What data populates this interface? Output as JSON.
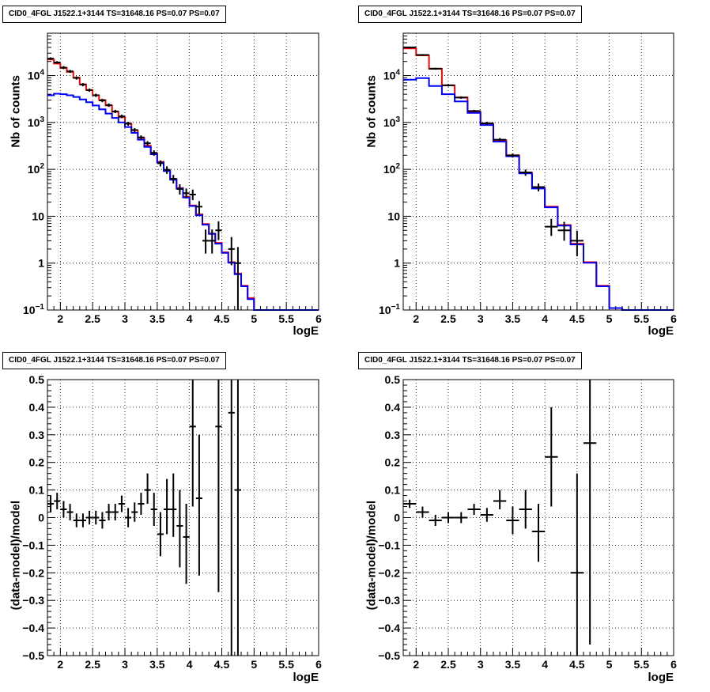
{
  "panel_title": "CID0_4FGL J1522.1+3144 TS=31648.16 PS=0.07 PS=0.07",
  "colors": {
    "total_model": "#ff0000",
    "component_model": "#0000ff",
    "data": "#000000"
  },
  "chart_data": [
    {
      "id": "top-left",
      "type": "line",
      "title": "CID0_4FGL J1522.1+3144 TS=31648.16 PS=0.07 PS=0.07",
      "xlabel": "logE",
      "ylabel": "Nb of counts",
      "xlim": [
        1.8,
        6
      ],
      "ylim": [
        0.1,
        80000
      ],
      "yscale": "log",
      "grid": true,
      "x_ticks": [
        2,
        2.5,
        3,
        3.5,
        4,
        4.5,
        5,
        5.5,
        6
      ],
      "x_tick_labels": [
        "2",
        "2.5",
        "3",
        "3.5",
        "4",
        "4.5",
        "5",
        "5.5",
        "6"
      ],
      "y_ticks": [
        0.1,
        1,
        10,
        100,
        1000,
        10000
      ],
      "y_tick_labels": [
        {
          "base": "10",
          "exp": "−1"
        },
        {
          "base": "1",
          "exp": ""
        },
        {
          "base": "10",
          "exp": ""
        },
        {
          "base": "10",
          "exp": "2"
        },
        {
          "base": "10",
          "exp": "3"
        },
        {
          "base": "10",
          "exp": "4"
        }
      ],
      "bin_edges": [
        1.8,
        1.9,
        2.0,
        2.1,
        2.2,
        2.3,
        2.4,
        2.5,
        2.6,
        2.7,
        2.8,
        2.9,
        3.0,
        3.1,
        3.2,
        3.3,
        3.4,
        3.5,
        3.6,
        3.7,
        3.8,
        3.9,
        4.0,
        4.1,
        4.2,
        4.3,
        4.4,
        4.5,
        4.6,
        4.7,
        4.8,
        4.9,
        5.0,
        5.1,
        5.2,
        5.3,
        5.4,
        5.5,
        5.6,
        5.7,
        5.8,
        5.9,
        6.0
      ],
      "series": [
        {
          "name": "",
          "color": "#ff0000",
          "values": [
            22000,
            18000,
            14500,
            12000,
            9000,
            6500,
            4900,
            3800,
            3000,
            2300,
            1700,
            1300,
            950,
            680,
            470,
            320,
            220,
            145,
            95,
            62,
            40,
            26,
            17,
            11,
            6.8,
            4.3,
            2.7,
            1.7,
            1.05,
            0.6,
            0.33,
            0.18,
            0.1,
            0.1,
            0.1,
            0.1,
            0.1,
            0.1,
            0.1,
            0.1,
            0.1,
            0.1
          ]
        },
        {
          "name": "",
          "color": "#0000ff",
          "values": [
            3800,
            4100,
            4000,
            3800,
            3500,
            3100,
            2700,
            2300,
            1900,
            1550,
            1250,
            1000,
            800,
            600,
            430,
            300,
            210,
            140,
            92,
            60,
            39,
            25,
            16.5,
            10.5,
            6.6,
            4.2,
            2.6,
            1.65,
            1.02,
            0.58,
            0.32,
            0.17,
            0.1,
            0.1,
            0.1,
            0.1,
            0.1,
            0.1,
            0.1,
            0.1,
            0.1,
            0.1
          ]
        }
      ],
      "data_points": [
        {
          "x": 1.85,
          "y": 23000,
          "ylo": 21500,
          "yhi": 24500,
          "xerr": 0.05
        },
        {
          "x": 1.95,
          "y": 19000,
          "ylo": 17700,
          "yhi": 20300,
          "xerr": 0.05
        },
        {
          "x": 2.05,
          "y": 14800,
          "ylo": 13700,
          "yhi": 15900,
          "xerr": 0.05
        },
        {
          "x": 2.15,
          "y": 12300,
          "ylo": 11400,
          "yhi": 13200,
          "xerr": 0.05
        },
        {
          "x": 2.25,
          "y": 8900,
          "ylo": 8200,
          "yhi": 9600,
          "xerr": 0.05
        },
        {
          "x": 2.35,
          "y": 6400,
          "ylo": 5900,
          "yhi": 6900,
          "xerr": 0.05
        },
        {
          "x": 2.45,
          "y": 4900,
          "ylo": 4500,
          "yhi": 5300,
          "xerr": 0.05
        },
        {
          "x": 2.55,
          "y": 3800,
          "ylo": 3500,
          "yhi": 4100,
          "xerr": 0.05
        },
        {
          "x": 2.65,
          "y": 2950,
          "ylo": 2700,
          "yhi": 3200,
          "xerr": 0.05
        },
        {
          "x": 2.75,
          "y": 2350,
          "ylo": 2150,
          "yhi": 2550,
          "xerr": 0.05
        },
        {
          "x": 2.85,
          "y": 1720,
          "ylo": 1580,
          "yhi": 1860,
          "xerr": 0.05
        },
        {
          "x": 2.95,
          "y": 1350,
          "ylo": 1230,
          "yhi": 1470,
          "xerr": 0.05
        },
        {
          "x": 3.05,
          "y": 940,
          "ylo": 850,
          "yhi": 1030,
          "xerr": 0.05
        },
        {
          "x": 3.15,
          "y": 690,
          "ylo": 620,
          "yhi": 760,
          "xerr": 0.05
        },
        {
          "x": 3.25,
          "y": 480,
          "ylo": 430,
          "yhi": 530,
          "xerr": 0.05
        },
        {
          "x": 3.35,
          "y": 360,
          "ylo": 320,
          "yhi": 400,
          "xerr": 0.05
        },
        {
          "x": 3.45,
          "y": 225,
          "ylo": 195,
          "yhi": 255,
          "xerr": 0.05
        },
        {
          "x": 3.55,
          "y": 135,
          "ylo": 115,
          "yhi": 155,
          "xerr": 0.05
        },
        {
          "x": 3.65,
          "y": 98,
          "ylo": 80,
          "yhi": 116,
          "xerr": 0.05
        },
        {
          "x": 3.75,
          "y": 63,
          "ylo": 50,
          "yhi": 76,
          "xerr": 0.05
        },
        {
          "x": 3.85,
          "y": 38,
          "ylo": 29,
          "yhi": 48,
          "xerr": 0.05
        },
        {
          "x": 3.95,
          "y": 31,
          "ylo": 24,
          "yhi": 39,
          "xerr": 0.05
        },
        {
          "x": 4.05,
          "y": 29,
          "ylo": 22,
          "yhi": 37,
          "xerr": 0.05
        },
        {
          "x": 4.15,
          "y": 16,
          "ylo": 11,
          "yhi": 21,
          "xerr": 0.05
        },
        {
          "x": 4.25,
          "y": 3,
          "ylo": 1.6,
          "yhi": 5.2,
          "xerr": 0.05
        },
        {
          "x": 4.35,
          "y": 3,
          "ylo": 1.6,
          "yhi": 5.2,
          "xerr": 0.05
        },
        {
          "x": 4.45,
          "y": 5,
          "ylo": 3.1,
          "yhi": 7.8,
          "xerr": 0.05
        },
        {
          "x": 4.65,
          "y": 2,
          "ylo": 0.9,
          "yhi": 3.6,
          "xerr": 0.05
        },
        {
          "x": 4.75,
          "y": 1,
          "ylo": 0.1,
          "yhi": 2.2,
          "xerr": 0.05
        }
      ]
    },
    {
      "id": "top-right",
      "type": "line",
      "title": "CID0_4FGL J1522.1+3144 TS=31648.16 PS=0.07 PS=0.07",
      "xlabel": "logE",
      "ylabel": "Nb of counts",
      "xlim": [
        1.8,
        6
      ],
      "ylim": [
        0.1,
        80000
      ],
      "yscale": "log",
      "grid": true,
      "x_ticks": [
        2,
        2.5,
        3,
        3.5,
        4,
        4.5,
        5,
        5.5,
        6
      ],
      "x_tick_labels": [
        "2",
        "2.5",
        "3",
        "3.5",
        "4",
        "4.5",
        "5",
        "5.5",
        "6"
      ],
      "y_ticks": [
        0.1,
        1,
        10,
        100,
        1000,
        10000
      ],
      "y_tick_labels": [
        {
          "base": "10",
          "exp": "−1"
        },
        {
          "base": "1",
          "exp": ""
        },
        {
          "base": "10",
          "exp": ""
        },
        {
          "base": "10",
          "exp": "2"
        },
        {
          "base": "10",
          "exp": "3"
        },
        {
          "base": "10",
          "exp": "4"
        }
      ],
      "bin_edges": [
        1.8,
        2.0,
        2.2,
        2.4,
        2.6,
        2.8,
        3.0,
        3.2,
        3.4,
        3.6,
        3.8,
        4.0,
        4.2,
        4.4,
        4.6,
        4.8,
        5.0,
        5.2,
        5.4,
        5.6,
        5.8,
        6.0
      ],
      "series": [
        {
          "name": "",
          "color": "#ff0000",
          "values": [
            38000,
            27000,
            14000,
            6200,
            3400,
            1700,
            950,
            420,
            200,
            85,
            40,
            16,
            6.5,
            2.6,
            1.05,
            0.33,
            0.11,
            0.1,
            0.1,
            0.1,
            0.1
          ]
        },
        {
          "name": "",
          "color": "#0000ff",
          "values": [
            8200,
            8800,
            6000,
            4000,
            2800,
            1600,
            880,
            390,
            190,
            82,
            39,
            15.5,
            6.3,
            2.5,
            1.02,
            0.32,
            0.11,
            0.1,
            0.1,
            0.1,
            0.1
          ]
        }
      ],
      "data_points": [
        {
          "x": 1.9,
          "y": 40000,
          "ylo": 38500,
          "yhi": 41500,
          "xerr": 0.1
        },
        {
          "x": 2.1,
          "y": 27500,
          "ylo": 26300,
          "yhi": 28700,
          "xerr": 0.1
        },
        {
          "x": 2.3,
          "y": 14000,
          "ylo": 13300,
          "yhi": 14700,
          "xerr": 0.1
        },
        {
          "x": 2.5,
          "y": 6200,
          "ylo": 5850,
          "yhi": 6550,
          "xerr": 0.1
        },
        {
          "x": 2.7,
          "y": 3400,
          "ylo": 3200,
          "yhi": 3600,
          "xerr": 0.1
        },
        {
          "x": 2.9,
          "y": 1750,
          "ylo": 1650,
          "yhi": 1850,
          "xerr": 0.1
        },
        {
          "x": 3.1,
          "y": 960,
          "ylo": 890,
          "yhi": 1030,
          "xerr": 0.1
        },
        {
          "x": 3.3,
          "y": 430,
          "ylo": 395,
          "yhi": 465,
          "xerr": 0.1
        },
        {
          "x": 3.5,
          "y": 198,
          "ylo": 178,
          "yhi": 218,
          "xerr": 0.1
        },
        {
          "x": 3.7,
          "y": 86,
          "ylo": 73,
          "yhi": 99,
          "xerr": 0.1
        },
        {
          "x": 3.9,
          "y": 42,
          "ylo": 34,
          "yhi": 50,
          "xerr": 0.1
        },
        {
          "x": 4.1,
          "y": 6,
          "ylo": 3.8,
          "yhi": 8.8,
          "xerr": 0.1
        },
        {
          "x": 4.3,
          "y": 5,
          "ylo": 3.0,
          "yhi": 7.6,
          "xerr": 0.1
        },
        {
          "x": 4.5,
          "y": 3,
          "ylo": 1.4,
          "yhi": 4.9,
          "xerr": 0.1
        }
      ]
    },
    {
      "id": "bottom-left",
      "type": "scatter",
      "title": "CID0_4FGL J1522.1+3144 TS=31648.16 PS=0.07 PS=0.07",
      "xlabel": "logE",
      "ylabel": "(data-model)/model",
      "xlim": [
        1.8,
        6
      ],
      "ylim": [
        -0.5,
        0.5
      ],
      "yscale": "linear",
      "grid": true,
      "x_ticks": [
        2,
        2.5,
        3,
        3.5,
        4,
        4.5,
        5,
        5.5,
        6
      ],
      "x_tick_labels": [
        "2",
        "2.5",
        "3",
        "3.5",
        "4",
        "4.5",
        "5",
        "5.5",
        "6"
      ],
      "y_ticks": [
        -0.5,
        -0.4,
        -0.3,
        -0.2,
        -0.1,
        0,
        0.1,
        0.2,
        0.3,
        0.4,
        0.5
      ],
      "y_tick_labels": [
        "−0.5",
        "−0.4",
        "−0.3",
        "−0.2",
        "−0.1",
        "0",
        "0.1",
        "0.2",
        "0.3",
        "0.4",
        "0.5"
      ],
      "data_points": [
        {
          "x": 1.85,
          "y": 0.05,
          "ylo": 0.02,
          "yhi": 0.08,
          "xerr": 0.05
        },
        {
          "x": 1.95,
          "y": 0.06,
          "ylo": 0.03,
          "yhi": 0.09,
          "xerr": 0.05
        },
        {
          "x": 2.05,
          "y": 0.03,
          "ylo": 0.0,
          "yhi": 0.06,
          "xerr": 0.05
        },
        {
          "x": 2.15,
          "y": 0.02,
          "ylo": -0.01,
          "yhi": 0.05,
          "xerr": 0.05
        },
        {
          "x": 2.25,
          "y": -0.01,
          "ylo": -0.035,
          "yhi": 0.015,
          "xerr": 0.05
        },
        {
          "x": 2.35,
          "y": -0.01,
          "ylo": -0.035,
          "yhi": 0.015,
          "xerr": 0.05
        },
        {
          "x": 2.45,
          "y": 0.0,
          "ylo": -0.025,
          "yhi": 0.025,
          "xerr": 0.05
        },
        {
          "x": 2.55,
          "y": 0.0,
          "ylo": -0.025,
          "yhi": 0.025,
          "xerr": 0.05
        },
        {
          "x": 2.65,
          "y": -0.01,
          "ylo": -0.04,
          "yhi": 0.02,
          "xerr": 0.05
        },
        {
          "x": 2.75,
          "y": 0.02,
          "ylo": -0.01,
          "yhi": 0.05,
          "xerr": 0.05
        },
        {
          "x": 2.85,
          "y": 0.02,
          "ylo": -0.01,
          "yhi": 0.05,
          "xerr": 0.05
        },
        {
          "x": 2.95,
          "y": 0.05,
          "ylo": 0.02,
          "yhi": 0.08,
          "xerr": 0.05
        },
        {
          "x": 3.05,
          "y": 0.0,
          "ylo": -0.035,
          "yhi": 0.035,
          "xerr": 0.05
        },
        {
          "x": 3.15,
          "y": 0.02,
          "ylo": -0.015,
          "yhi": 0.055,
          "xerr": 0.05
        },
        {
          "x": 3.25,
          "y": 0.05,
          "ylo": 0.01,
          "yhi": 0.09,
          "xerr": 0.05
        },
        {
          "x": 3.35,
          "y": 0.1,
          "ylo": 0.05,
          "yhi": 0.16,
          "xerr": 0.05
        },
        {
          "x": 3.45,
          "y": 0.03,
          "ylo": -0.03,
          "yhi": 0.09,
          "xerr": 0.05
        },
        {
          "x": 3.55,
          "y": -0.06,
          "ylo": -0.14,
          "yhi": 0.02,
          "xerr": 0.05
        },
        {
          "x": 3.65,
          "y": 0.03,
          "ylo": -0.06,
          "yhi": 0.14,
          "xerr": 0.05
        },
        {
          "x": 3.75,
          "y": 0.03,
          "ylo": -0.07,
          "yhi": 0.16,
          "xerr": 0.05
        },
        {
          "x": 3.85,
          "y": -0.03,
          "ylo": -0.18,
          "yhi": 0.1,
          "xerr": 0.05
        },
        {
          "x": 3.95,
          "y": -0.07,
          "ylo": -0.24,
          "yhi": 0.05,
          "xerr": 0.05
        },
        {
          "x": 4.05,
          "y": 0.33,
          "ylo": 0.04,
          "yhi": 0.5,
          "xerr": 0.05
        },
        {
          "x": 4.15,
          "y": 0.07,
          "ylo": -0.21,
          "yhi": 0.3,
          "xerr": 0.05
        },
        {
          "x": 4.45,
          "y": 0.33,
          "ylo": -0.27,
          "yhi": 0.5,
          "xerr": 0.05
        },
        {
          "x": 4.65,
          "y": 0.38,
          "ylo": -0.5,
          "yhi": 0.5,
          "xerr": 0.05
        },
        {
          "x": 4.75,
          "y": 0.1,
          "ylo": -0.5,
          "yhi": 0.5,
          "xerr": 0.05
        }
      ]
    },
    {
      "id": "bottom-right",
      "type": "scatter",
      "title": "CID0_4FGL J1522.1+3144 TS=31648.16 PS=0.07 PS=0.07",
      "xlabel": "logE",
      "ylabel": "(data-model)/model",
      "xlim": [
        1.8,
        6
      ],
      "ylim": [
        -0.5,
        0.5
      ],
      "yscale": "linear",
      "grid": true,
      "x_ticks": [
        2,
        2.5,
        3,
        3.5,
        4,
        4.5,
        5,
        5.5,
        6
      ],
      "x_tick_labels": [
        "2",
        "2.5",
        "3",
        "3.5",
        "4",
        "4.5",
        "5",
        "5.5",
        "6"
      ],
      "y_ticks": [
        -0.5,
        -0.4,
        -0.3,
        -0.2,
        -0.1,
        0,
        0.1,
        0.2,
        0.3,
        0.4,
        0.5
      ],
      "y_tick_labels": [
        "−0.5",
        "−0.4",
        "−0.3",
        "−0.2",
        "−0.1",
        "0",
        "0.1",
        "0.2",
        "0.3",
        "0.4",
        "0.5"
      ],
      "data_points": [
        {
          "x": 1.9,
          "y": 0.05,
          "ylo": 0.035,
          "yhi": 0.065,
          "xerr": 0.1
        },
        {
          "x": 2.1,
          "y": 0.02,
          "ylo": 0.0,
          "yhi": 0.04,
          "xerr": 0.1
        },
        {
          "x": 2.3,
          "y": -0.01,
          "ylo": -0.03,
          "yhi": 0.01,
          "xerr": 0.1
        },
        {
          "x": 2.5,
          "y": 0.0,
          "ylo": -0.02,
          "yhi": 0.02,
          "xerr": 0.1
        },
        {
          "x": 2.7,
          "y": 0.0,
          "ylo": -0.02,
          "yhi": 0.02,
          "xerr": 0.1
        },
        {
          "x": 2.9,
          "y": 0.03,
          "ylo": 0.01,
          "yhi": 0.05,
          "xerr": 0.1
        },
        {
          "x": 3.1,
          "y": 0.01,
          "ylo": -0.015,
          "yhi": 0.035,
          "xerr": 0.1
        },
        {
          "x": 3.3,
          "y": 0.06,
          "ylo": 0.03,
          "yhi": 0.1,
          "xerr": 0.1
        },
        {
          "x": 3.5,
          "y": -0.01,
          "ylo": -0.06,
          "yhi": 0.04,
          "xerr": 0.1
        },
        {
          "x": 3.7,
          "y": 0.03,
          "ylo": -0.04,
          "yhi": 0.1,
          "xerr": 0.1
        },
        {
          "x": 3.9,
          "y": -0.05,
          "ylo": -0.16,
          "yhi": 0.05,
          "xerr": 0.1
        },
        {
          "x": 4.1,
          "y": 0.22,
          "ylo": 0.04,
          "yhi": 0.4,
          "xerr": 0.1
        },
        {
          "x": 4.5,
          "y": -0.2,
          "ylo": -0.5,
          "yhi": 0.16,
          "xerr": 0.1
        },
        {
          "x": 4.7,
          "y": 0.27,
          "ylo": -0.46,
          "yhi": 0.5,
          "xerr": 0.1
        }
      ]
    }
  ]
}
